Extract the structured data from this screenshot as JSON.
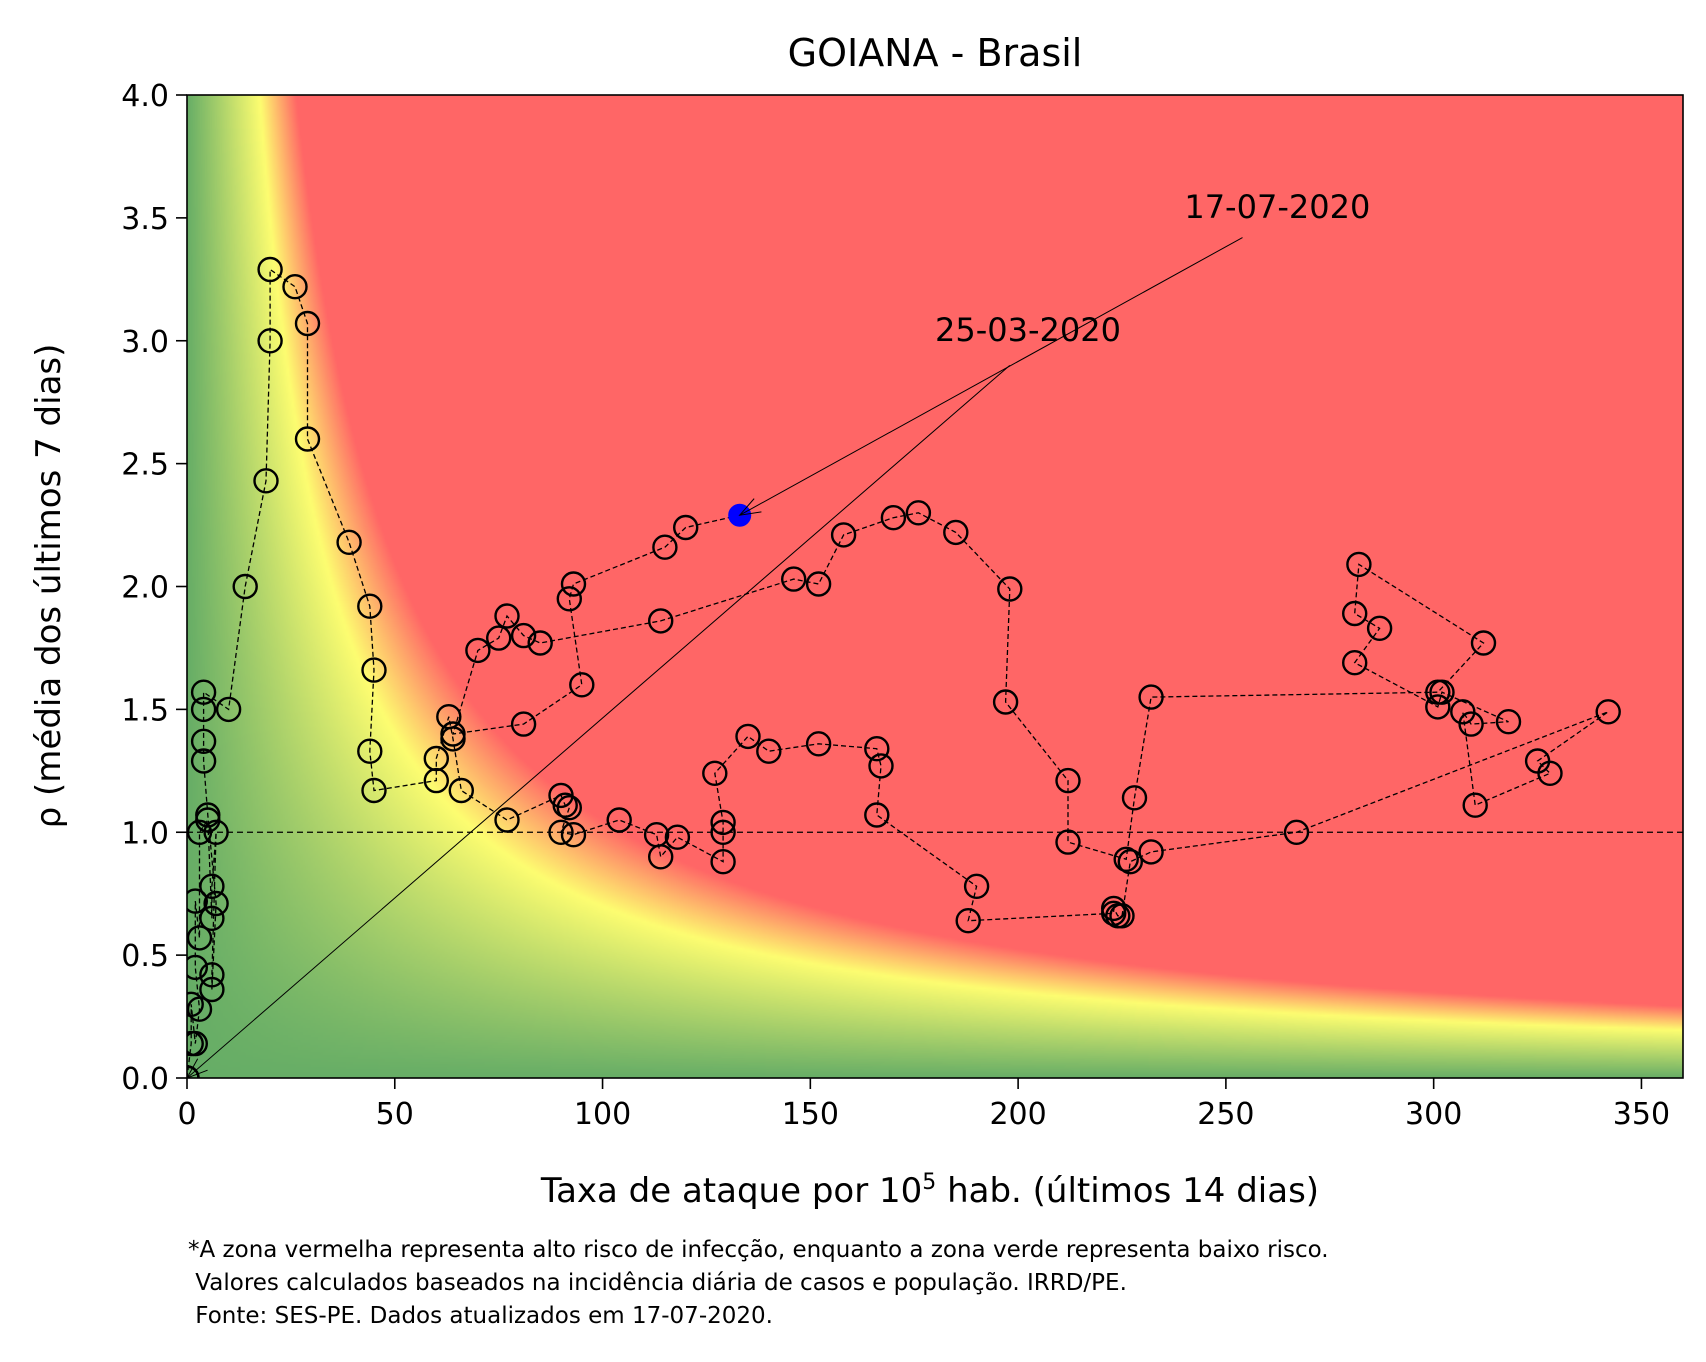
{
  "chart_data": {
    "type": "scatter",
    "title": "GOIANA - Brasil",
    "xlabel_prefix": "Taxa de ataque por 10",
    "xlabel_sup": "5",
    "xlabel_suffix": " hab. (últimos 14 dias)",
    "ylabel": "ρ (média dos últimos 7 dias)",
    "xlim": [
      0,
      360
    ],
    "ylim": [
      0,
      4
    ],
    "x_ticks": [
      0,
      50,
      100,
      150,
      200,
      250,
      300,
      350
    ],
    "y_ticks": [
      0.0,
      0.5,
      1.0,
      1.5,
      2.0,
      2.5,
      3.0,
      3.5,
      4.0
    ],
    "reference_line_y": 1.0,
    "background": {
      "description": "risk zones",
      "green": "#66ad66",
      "yellow": "#fdfd70",
      "red": "#ff6666"
    },
    "marker_color": "#000000",
    "last_point_color": "#0000ff",
    "annotations": [
      {
        "text": "25-03-2020",
        "x": 180,
        "y": 3.0,
        "arrow_from": [
          198,
          2.9
        ],
        "arrow_to": [
          0,
          0
        ]
      },
      {
        "text": "17-07-2020",
        "x": 240,
        "y": 3.5,
        "arrow_from": [
          254,
          3.42
        ],
        "arrow_to": [
          133,
          2.29
        ]
      }
    ],
    "series": [
      {
        "values": [
          [
            0,
            0
          ],
          [
            0,
            0
          ],
          [
            0,
            0
          ],
          [
            1,
            0.14
          ],
          [
            1,
            0.3
          ],
          [
            2,
            0.14
          ],
          [
            3,
            0.28
          ],
          [
            2,
            0.45
          ],
          [
            2,
            0.72
          ],
          [
            3,
            0.57
          ],
          [
            3,
            1.0
          ],
          [
            5,
            1.05
          ],
          [
            6,
            0.65
          ],
          [
            6,
            0.78
          ],
          [
            7,
            1.0
          ],
          [
            6,
            0.42
          ],
          [
            6,
            0.36
          ],
          [
            7,
            0.71
          ],
          [
            5,
            1.07
          ],
          [
            4,
            1.29
          ],
          [
            4,
            1.37
          ],
          [
            4,
            1.5
          ],
          [
            4,
            1.57
          ],
          [
            10,
            1.5
          ],
          [
            14,
            2.0
          ],
          [
            19,
            2.43
          ],
          [
            20,
            3.0
          ],
          [
            20,
            3.29
          ],
          [
            26,
            3.22
          ],
          [
            29,
            3.07
          ],
          [
            29,
            2.6
          ],
          [
            39,
            2.18
          ],
          [
            44,
            1.92
          ],
          [
            45,
            1.66
          ],
          [
            44,
            1.33
          ],
          [
            45,
            1.17
          ],
          [
            60,
            1.21
          ],
          [
            60,
            1.3
          ],
          [
            63,
            1.47
          ],
          [
            64,
            1.38
          ],
          [
            66,
            1.17
          ],
          [
            77,
            1.05
          ],
          [
            90,
            1.15
          ],
          [
            91,
            1.11
          ],
          [
            92,
            1.1
          ],
          [
            90,
            1.0
          ],
          [
            93,
            0.99
          ],
          [
            104,
            1.05
          ],
          [
            113,
            0.99
          ],
          [
            114,
            0.9
          ],
          [
            118,
            0.98
          ],
          [
            129,
            0.88
          ],
          [
            129,
            1.0
          ],
          [
            129,
            1.04
          ],
          [
            127,
            1.24
          ],
          [
            135,
            1.39
          ],
          [
            140,
            1.33
          ],
          [
            152,
            1.36
          ],
          [
            166,
            1.34
          ],
          [
            167,
            1.27
          ],
          [
            166,
            1.07
          ],
          [
            190,
            0.78
          ],
          [
            188,
            0.64
          ],
          [
            223,
            0.67
          ],
          [
            223,
            0.69
          ],
          [
            224,
            0.66
          ],
          [
            225,
            0.66
          ],
          [
            227,
            0.88
          ],
          [
            232,
            0.92
          ],
          [
            267,
            1.0
          ],
          [
            342,
            1.49
          ],
          [
            325,
            1.29
          ],
          [
            328,
            1.24
          ],
          [
            310,
            1.11
          ],
          [
            307,
            1.49
          ],
          [
            309,
            1.44
          ],
          [
            318,
            1.45
          ],
          [
            302,
            1.57
          ],
          [
            301,
            1.51
          ],
          [
            281,
            1.69
          ],
          [
            287,
            1.83
          ],
          [
            281,
            1.89
          ],
          [
            282,
            2.09
          ],
          [
            312,
            1.77
          ],
          [
            301,
            1.57
          ],
          [
            232,
            1.55
          ],
          [
            228,
            1.14
          ],
          [
            226,
            0.89
          ],
          [
            212,
            0.96
          ],
          [
            212,
            1.21
          ],
          [
            197,
            1.53
          ],
          [
            198,
            1.99
          ],
          [
            185,
            2.22
          ],
          [
            176,
            2.3
          ],
          [
            170,
            2.28
          ],
          [
            158,
            2.21
          ],
          [
            152,
            2.01
          ],
          [
            146,
            2.03
          ],
          [
            114,
            1.86
          ],
          [
            85,
            1.77
          ],
          [
            81,
            1.8
          ],
          [
            77,
            1.88
          ],
          [
            75,
            1.79
          ],
          [
            70,
            1.74
          ],
          [
            64,
            1.4
          ],
          [
            81,
            1.44
          ],
          [
            95,
            1.6
          ],
          [
            92,
            1.95
          ],
          [
            93,
            2.01
          ],
          [
            115,
            2.16
          ],
          [
            120,
            2.24
          ],
          [
            133,
            2.29
          ]
        ]
      }
    ],
    "footnote": [
      "*A zona vermelha representa alto risco de infecção, enquanto a zona verde representa baixo risco.",
      " Valores calculados baseados na incidência diária de casos e população. IRRD/PE.",
      " Fonte: SES-PE. Dados atualizados em 17-07-2020."
    ]
  }
}
